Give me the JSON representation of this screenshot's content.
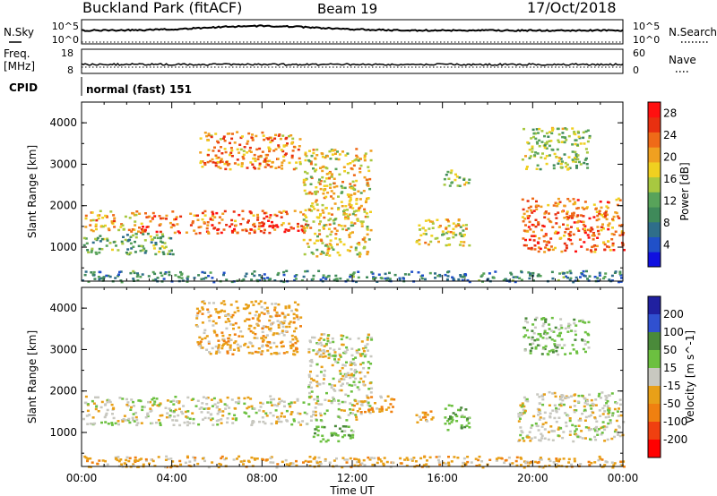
{
  "header": {
    "station": "Buckland Park (fitACF)",
    "beam": "Beam 19",
    "date": "17/Oct/2018"
  },
  "strips": {
    "nsky_label": "N.Sky",
    "nsky_ticks": [
      "10^5",
      "10^0"
    ],
    "nsearch_label": "N.Search",
    "nsearch_ticks": [
      "10^5",
      "10^0"
    ],
    "freq_label": "Freq.",
    "freq_unit": "[MHz]",
    "freq_ticks": [
      "18",
      "8"
    ],
    "nave_label": "Nave",
    "nave_ticks": [
      "60",
      "0"
    ],
    "cpid_label": "CPID",
    "cpid_value": "normal (fast) 151"
  },
  "colors": {
    "power": [
      "#1010e0",
      "#2050c8",
      "#2f6e8a",
      "#3f8a5a",
      "#58a35a",
      "#a8c840",
      "#f0d020",
      "#f0a020",
      "#ef6a18",
      "#e83010",
      "#ff1010"
    ],
    "velocity": [
      "#2020a0",
      "#3050d0",
      "#4a8a3a",
      "#6cc040",
      "#c8c8c0",
      "#e8a018",
      "#f08010",
      "#f04010",
      "#ff0000"
    ],
    "trace": "#000000"
  },
  "chart_data": [
    {
      "type": "heatmap",
      "title": "Power",
      "xlabel": "",
      "ylabel": "Slant Range [km]",
      "xlim": [
        "00:00",
        "24:00"
      ],
      "ylim": [
        180,
        4500
      ],
      "x_ticks": [
        "00:00",
        "04:00",
        "08:00",
        "12:00",
        "16:00",
        "20:00",
        "00:00"
      ],
      "y_ticks": [
        "1000",
        "2000",
        "3000",
        "4000"
      ],
      "colorbar_label": "Power [dB]",
      "colorbar_ticks": [
        "4",
        "8",
        "12",
        "16",
        "20",
        "24",
        "28"
      ],
      "colorbar_range": [
        0,
        30
      ],
      "regions": [
        {
          "t0": 0.0,
          "t1": 2.5,
          "r0": 1400,
          "r1": 1900,
          "value": 20
        },
        {
          "t0": 2.5,
          "t1": 10.0,
          "r0": 1350,
          "r1": 1900,
          "value": 25
        },
        {
          "t0": 0.0,
          "t1": 4.0,
          "r0": 850,
          "r1": 1350,
          "value": 12
        },
        {
          "t0": 5.2,
          "t1": 9.7,
          "r0": 2900,
          "r1": 3800,
          "value": 22
        },
        {
          "t0": 9.8,
          "t1": 12.8,
          "r0": 800,
          "r1": 3400,
          "value": 18
        },
        {
          "t0": 14.8,
          "t1": 17.2,
          "r0": 1050,
          "r1": 1700,
          "value": 18
        },
        {
          "t0": 16.0,
          "t1": 17.2,
          "r0": 2500,
          "r1": 2900,
          "value": 14
        },
        {
          "t0": 19.5,
          "t1": 24.0,
          "r0": 900,
          "r1": 2200,
          "value": 24
        },
        {
          "t0": 19.5,
          "t1": 22.5,
          "r0": 2900,
          "r1": 3900,
          "value": 14
        },
        {
          "t0": 0.0,
          "t1": 24.0,
          "r0": 180,
          "r1": 450,
          "value": 8
        }
      ]
    },
    {
      "type": "heatmap",
      "title": "Velocity",
      "xlabel": "Time UT",
      "ylabel": "Slant Range [km]",
      "xlim": [
        "00:00",
        "24:00"
      ],
      "ylim": [
        180,
        4500
      ],
      "x_ticks": [
        "00:00",
        "04:00",
        "08:00",
        "12:00",
        "16:00",
        "20:00",
        "00:00"
      ],
      "y_ticks": [
        "1000",
        "2000",
        "3000",
        "4000"
      ],
      "colorbar_label": "Velocity [m s^-1]",
      "colorbar_ticks": [
        "200",
        "100",
        "50",
        "15",
        "-15",
        "-50",
        "-100",
        "-200"
      ],
      "colorbar_range": [
        -250,
        250
      ],
      "regions": [
        {
          "t0": 0.0,
          "t1": 10.0,
          "r0": 1200,
          "r1": 1900,
          "value": 0
        },
        {
          "t0": 5.0,
          "t1": 9.7,
          "r0": 2900,
          "r1": 4200,
          "value": -30
        },
        {
          "t0": 10.0,
          "t1": 12.8,
          "r0": 1300,
          "r1": 3400,
          "value": 0
        },
        {
          "t0": 12.0,
          "t1": 13.8,
          "r0": 1500,
          "r1": 1900,
          "value": -40
        },
        {
          "t0": 10.2,
          "t1": 12.0,
          "r0": 800,
          "r1": 1200,
          "value": 40
        },
        {
          "t0": 14.8,
          "t1": 15.6,
          "r0": 1250,
          "r1": 1600,
          "value": -40
        },
        {
          "t0": 16.0,
          "t1": 17.2,
          "r0": 1050,
          "r1": 1700,
          "value": 40
        },
        {
          "t0": 19.3,
          "t1": 24.0,
          "r0": 800,
          "r1": 2000,
          "value": 0
        },
        {
          "t0": 19.5,
          "t1": 22.5,
          "r0": 2900,
          "r1": 3800,
          "value": 30
        },
        {
          "t0": 0.0,
          "t1": 24.0,
          "r0": 180,
          "r1": 450,
          "value": -30
        }
      ]
    }
  ]
}
